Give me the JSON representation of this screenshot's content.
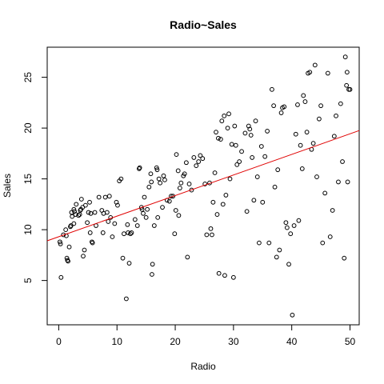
{
  "chart_data": {
    "type": "scatter",
    "title": "Radio~Sales",
    "xlabel": "Radio",
    "ylabel": "Sales",
    "xlim": [
      -1.98,
      51.58
    ],
    "ylim": [
      0.64,
      27.96
    ],
    "xticks": [
      0,
      10,
      20,
      30,
      40,
      50
    ],
    "yticks": [
      5,
      10,
      15,
      20,
      25
    ],
    "grid": false,
    "legend": "none",
    "point_color": "#000000",
    "line_color": "#e00000",
    "regression_line": {
      "intercept": 9.31,
      "slope": 0.2025
    },
    "points": [
      [
        0.2,
        8.8
      ],
      [
        0.3,
        8.6
      ],
      [
        0.4,
        5.3
      ],
      [
        0.8,
        9.5
      ],
      [
        1.2,
        10.0
      ],
      [
        1.3,
        9.4
      ],
      [
        1.4,
        7.2
      ],
      [
        1.5,
        7.0
      ],
      [
        1.6,
        6.9
      ],
      [
        1.8,
        8.3
      ],
      [
        2.0,
        10.3
      ],
      [
        2.1,
        10.4
      ],
      [
        2.2,
        11.7
      ],
      [
        2.3,
        11.3
      ],
      [
        2.6,
        10.6
      ],
      [
        2.6,
        12.0
      ],
      [
        2.7,
        11.8
      ],
      [
        2.9,
        11.5
      ],
      [
        3.0,
        12.5
      ],
      [
        3.4,
        11.4
      ],
      [
        3.6,
        11.5
      ],
      [
        3.7,
        11.9
      ],
      [
        3.8,
        12.0
      ],
      [
        3.9,
        13.0
      ],
      [
        4.1,
        12.2
      ],
      [
        4.2,
        7.4
      ],
      [
        4.4,
        8.0
      ],
      [
        4.6,
        12.4
      ],
      [
        4.9,
        10.7
      ],
      [
        5.1,
        11.7
      ],
      [
        5.3,
        12.7
      ],
      [
        5.4,
        9.7
      ],
      [
        5.5,
        11.6
      ],
      [
        5.7,
        8.8
      ],
      [
        5.8,
        8.7
      ],
      [
        6.2,
        11.7
      ],
      [
        6.4,
        10.4
      ],
      [
        6.9,
        13.2
      ],
      [
        7.4,
        11.9
      ],
      [
        7.6,
        9.7
      ],
      [
        7.7,
        11.6
      ],
      [
        8.0,
        13.2
      ],
      [
        8.3,
        11.7
      ],
      [
        8.5,
        10.8
      ],
      [
        8.7,
        13.3
      ],
      [
        8.9,
        11.2
      ],
      [
        9.2,
        9.3
      ],
      [
        9.6,
        10.6
      ],
      [
        9.9,
        12.7
      ],
      [
        10.1,
        12.4
      ],
      [
        10.4,
        14.8
      ],
      [
        10.7,
        15.0
      ],
      [
        11.0,
        7.2
      ],
      [
        11.2,
        9.6
      ],
      [
        11.6,
        3.2
      ],
      [
        11.8,
        10.5
      ],
      [
        11.9,
        9.7
      ],
      [
        12.1,
        6.7
      ],
      [
        12.3,
        9.6
      ],
      [
        12.5,
        9.7
      ],
      [
        13.1,
        11.0
      ],
      [
        13.5,
        10.4
      ],
      [
        13.8,
        16.0
      ],
      [
        13.9,
        16.1
      ],
      [
        14.2,
        12.2
      ],
      [
        14.3,
        12.0
      ],
      [
        14.5,
        11.6
      ],
      [
        14.7,
        13.2
      ],
      [
        15.0,
        11.2
      ],
      [
        15.2,
        12.0
      ],
      [
        15.5,
        14.2
      ],
      [
        15.8,
        15.5
      ],
      [
        15.9,
        14.7
      ],
      [
        16.0,
        5.6
      ],
      [
        16.1,
        6.6
      ],
      [
        16.4,
        10.4
      ],
      [
        16.8,
        16.1
      ],
      [
        16.9,
        15.9
      ],
      [
        17.0,
        11.2
      ],
      [
        17.2,
        15.0
      ],
      [
        17.4,
        14.6
      ],
      [
        17.8,
        12.2
      ],
      [
        18.0,
        15.3
      ],
      [
        18.2,
        14.9
      ],
      [
        18.6,
        12.9
      ],
      [
        19.0,
        12.8
      ],
      [
        19.3,
        13.3
      ],
      [
        19.6,
        13.3
      ],
      [
        19.9,
        9.6
      ],
      [
        20.1,
        11.9
      ],
      [
        20.2,
        17.4
      ],
      [
        20.5,
        15.8
      ],
      [
        20.6,
        11.4
      ],
      [
        20.8,
        14.1
      ],
      [
        21.0,
        14.6
      ],
      [
        21.4,
        15.3
      ],
      [
        21.6,
        15.5
      ],
      [
        21.9,
        16.6
      ],
      [
        22.1,
        7.3
      ],
      [
        22.4,
        14.5
      ],
      [
        22.8,
        13.9
      ],
      [
        23.2,
        17.1
      ],
      [
        23.6,
        16.3
      ],
      [
        24.0,
        16.7
      ],
      [
        24.3,
        17.3
      ],
      [
        24.7,
        17.0
      ],
      [
        25.1,
        14.5
      ],
      [
        25.4,
        9.5
      ],
      [
        25.9,
        14.6
      ],
      [
        26.1,
        10.1
      ],
      [
        26.3,
        9.5
      ],
      [
        26.5,
        12.7
      ],
      [
        26.8,
        15.6
      ],
      [
        27.0,
        19.6
      ],
      [
        27.2,
        11.5
      ],
      [
        27.4,
        19.0
      ],
      [
        27.5,
        5.7
      ],
      [
        27.8,
        18.9
      ],
      [
        28.0,
        20.7
      ],
      [
        28.2,
        12.5
      ],
      [
        28.4,
        21.2
      ],
      [
        28.5,
        5.5
      ],
      [
        28.7,
        13.4
      ],
      [
        29.0,
        20.0
      ],
      [
        29.2,
        21.4
      ],
      [
        29.4,
        15.0
      ],
      [
        29.7,
        18.4
      ],
      [
        30.0,
        5.3
      ],
      [
        30.2,
        20.2
      ],
      [
        30.4,
        18.3
      ],
      [
        30.6,
        16.4
      ],
      [
        31.0,
        16.7
      ],
      [
        31.4,
        17.7
      ],
      [
        32.0,
        19.5
      ],
      [
        32.3,
        11.8
      ],
      [
        32.6,
        20.2
      ],
      [
        32.8,
        19.9
      ],
      [
        33.0,
        19.3
      ],
      [
        33.2,
        17.1
      ],
      [
        33.5,
        12.9
      ],
      [
        33.8,
        20.7
      ],
      [
        34.1,
        15.2
      ],
      [
        34.4,
        8.7
      ],
      [
        34.8,
        18.2
      ],
      [
        35.0,
        12.7
      ],
      [
        35.4,
        17.2
      ],
      [
        35.8,
        19.7
      ],
      [
        36.1,
        8.7
      ],
      [
        36.6,
        23.8
      ],
      [
        36.9,
        22.2
      ],
      [
        37.1,
        14.2
      ],
      [
        37.4,
        7.3
      ],
      [
        37.6,
        15.9
      ],
      [
        37.9,
        8.0
      ],
      [
        38.2,
        21.5
      ],
      [
        38.4,
        22.0
      ],
      [
        38.7,
        22.1
      ],
      [
        39.0,
        10.7
      ],
      [
        39.2,
        10.2
      ],
      [
        39.5,
        6.6
      ],
      [
        39.8,
        9.6
      ],
      [
        40.1,
        1.6
      ],
      [
        40.4,
        10.4
      ],
      [
        40.7,
        19.4
      ],
      [
        41.0,
        22.3
      ],
      [
        41.2,
        10.9
      ],
      [
        41.5,
        18.3
      ],
      [
        41.8,
        16.0
      ],
      [
        42.0,
        23.2
      ],
      [
        42.3,
        22.6
      ],
      [
        42.6,
        19.6
      ],
      [
        42.8,
        25.4
      ],
      [
        43.1,
        25.5
      ],
      [
        43.4,
        17.9
      ],
      [
        43.7,
        18.5
      ],
      [
        44.0,
        26.2
      ],
      [
        44.3,
        15.2
      ],
      [
        44.7,
        20.9
      ],
      [
        45.0,
        22.2
      ],
      [
        45.3,
        8.7
      ],
      [
        45.7,
        13.6
      ],
      [
        46.2,
        25.4
      ],
      [
        46.6,
        9.3
      ],
      [
        47.0,
        11.9
      ],
      [
        47.3,
        19.2
      ],
      [
        47.6,
        21.2
      ],
      [
        48.0,
        14.7
      ],
      [
        48.4,
        22.4
      ],
      [
        48.7,
        16.7
      ],
      [
        49.0,
        7.2
      ],
      [
        49.2,
        27.0
      ],
      [
        49.4,
        24.2
      ],
      [
        49.5,
        25.5
      ],
      [
        49.6,
        14.7
      ],
      [
        49.8,
        23.8
      ],
      [
        50.0,
        23.8
      ]
    ]
  }
}
